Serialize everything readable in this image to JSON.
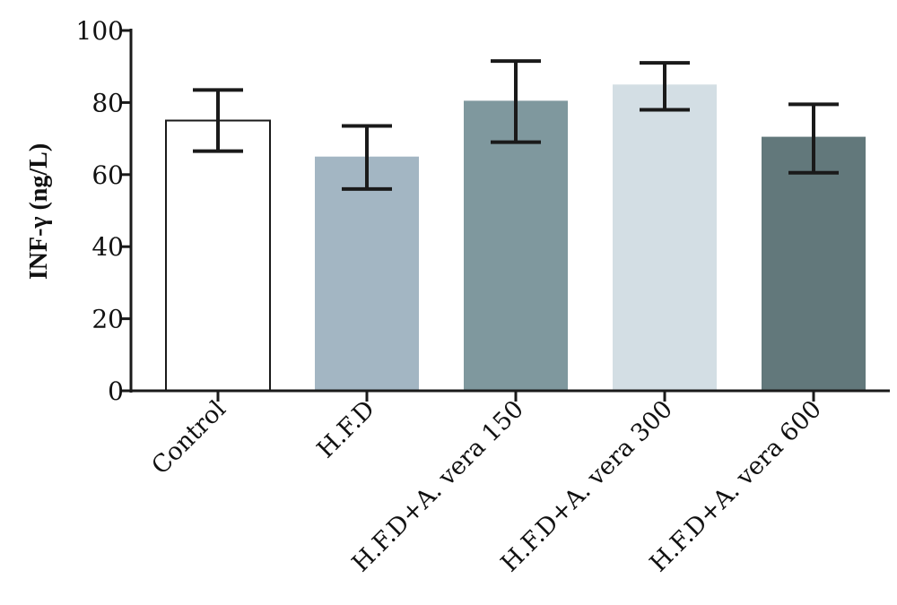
{
  "chart_data": {
    "type": "bar",
    "title": "",
    "xlabel": "",
    "ylabel": "INF-γ (ng/L)",
    "ylim": [
      0,
      100
    ],
    "yticks": [
      0,
      20,
      40,
      60,
      80,
      100
    ],
    "categories": [
      "Control",
      "H.F.D",
      "H.F.D+A. vera 150",
      "H.F.D+A. vera 300",
      "H.F.D+A. vera 600"
    ],
    "values": [
      75,
      65,
      80.5,
      85,
      70.5
    ],
    "error_low": [
      66.5,
      56,
      69,
      78,
      60.5
    ],
    "error_high": [
      83.5,
      73.5,
      91.5,
      91,
      79.5
    ],
    "bar_colors": [
      "#ffffff",
      "#a3b6c3",
      "#7f989e",
      "#d3dee4",
      "#62787b"
    ],
    "bar_outline": "#1a1a1a",
    "grid": false,
    "legend": "none"
  }
}
